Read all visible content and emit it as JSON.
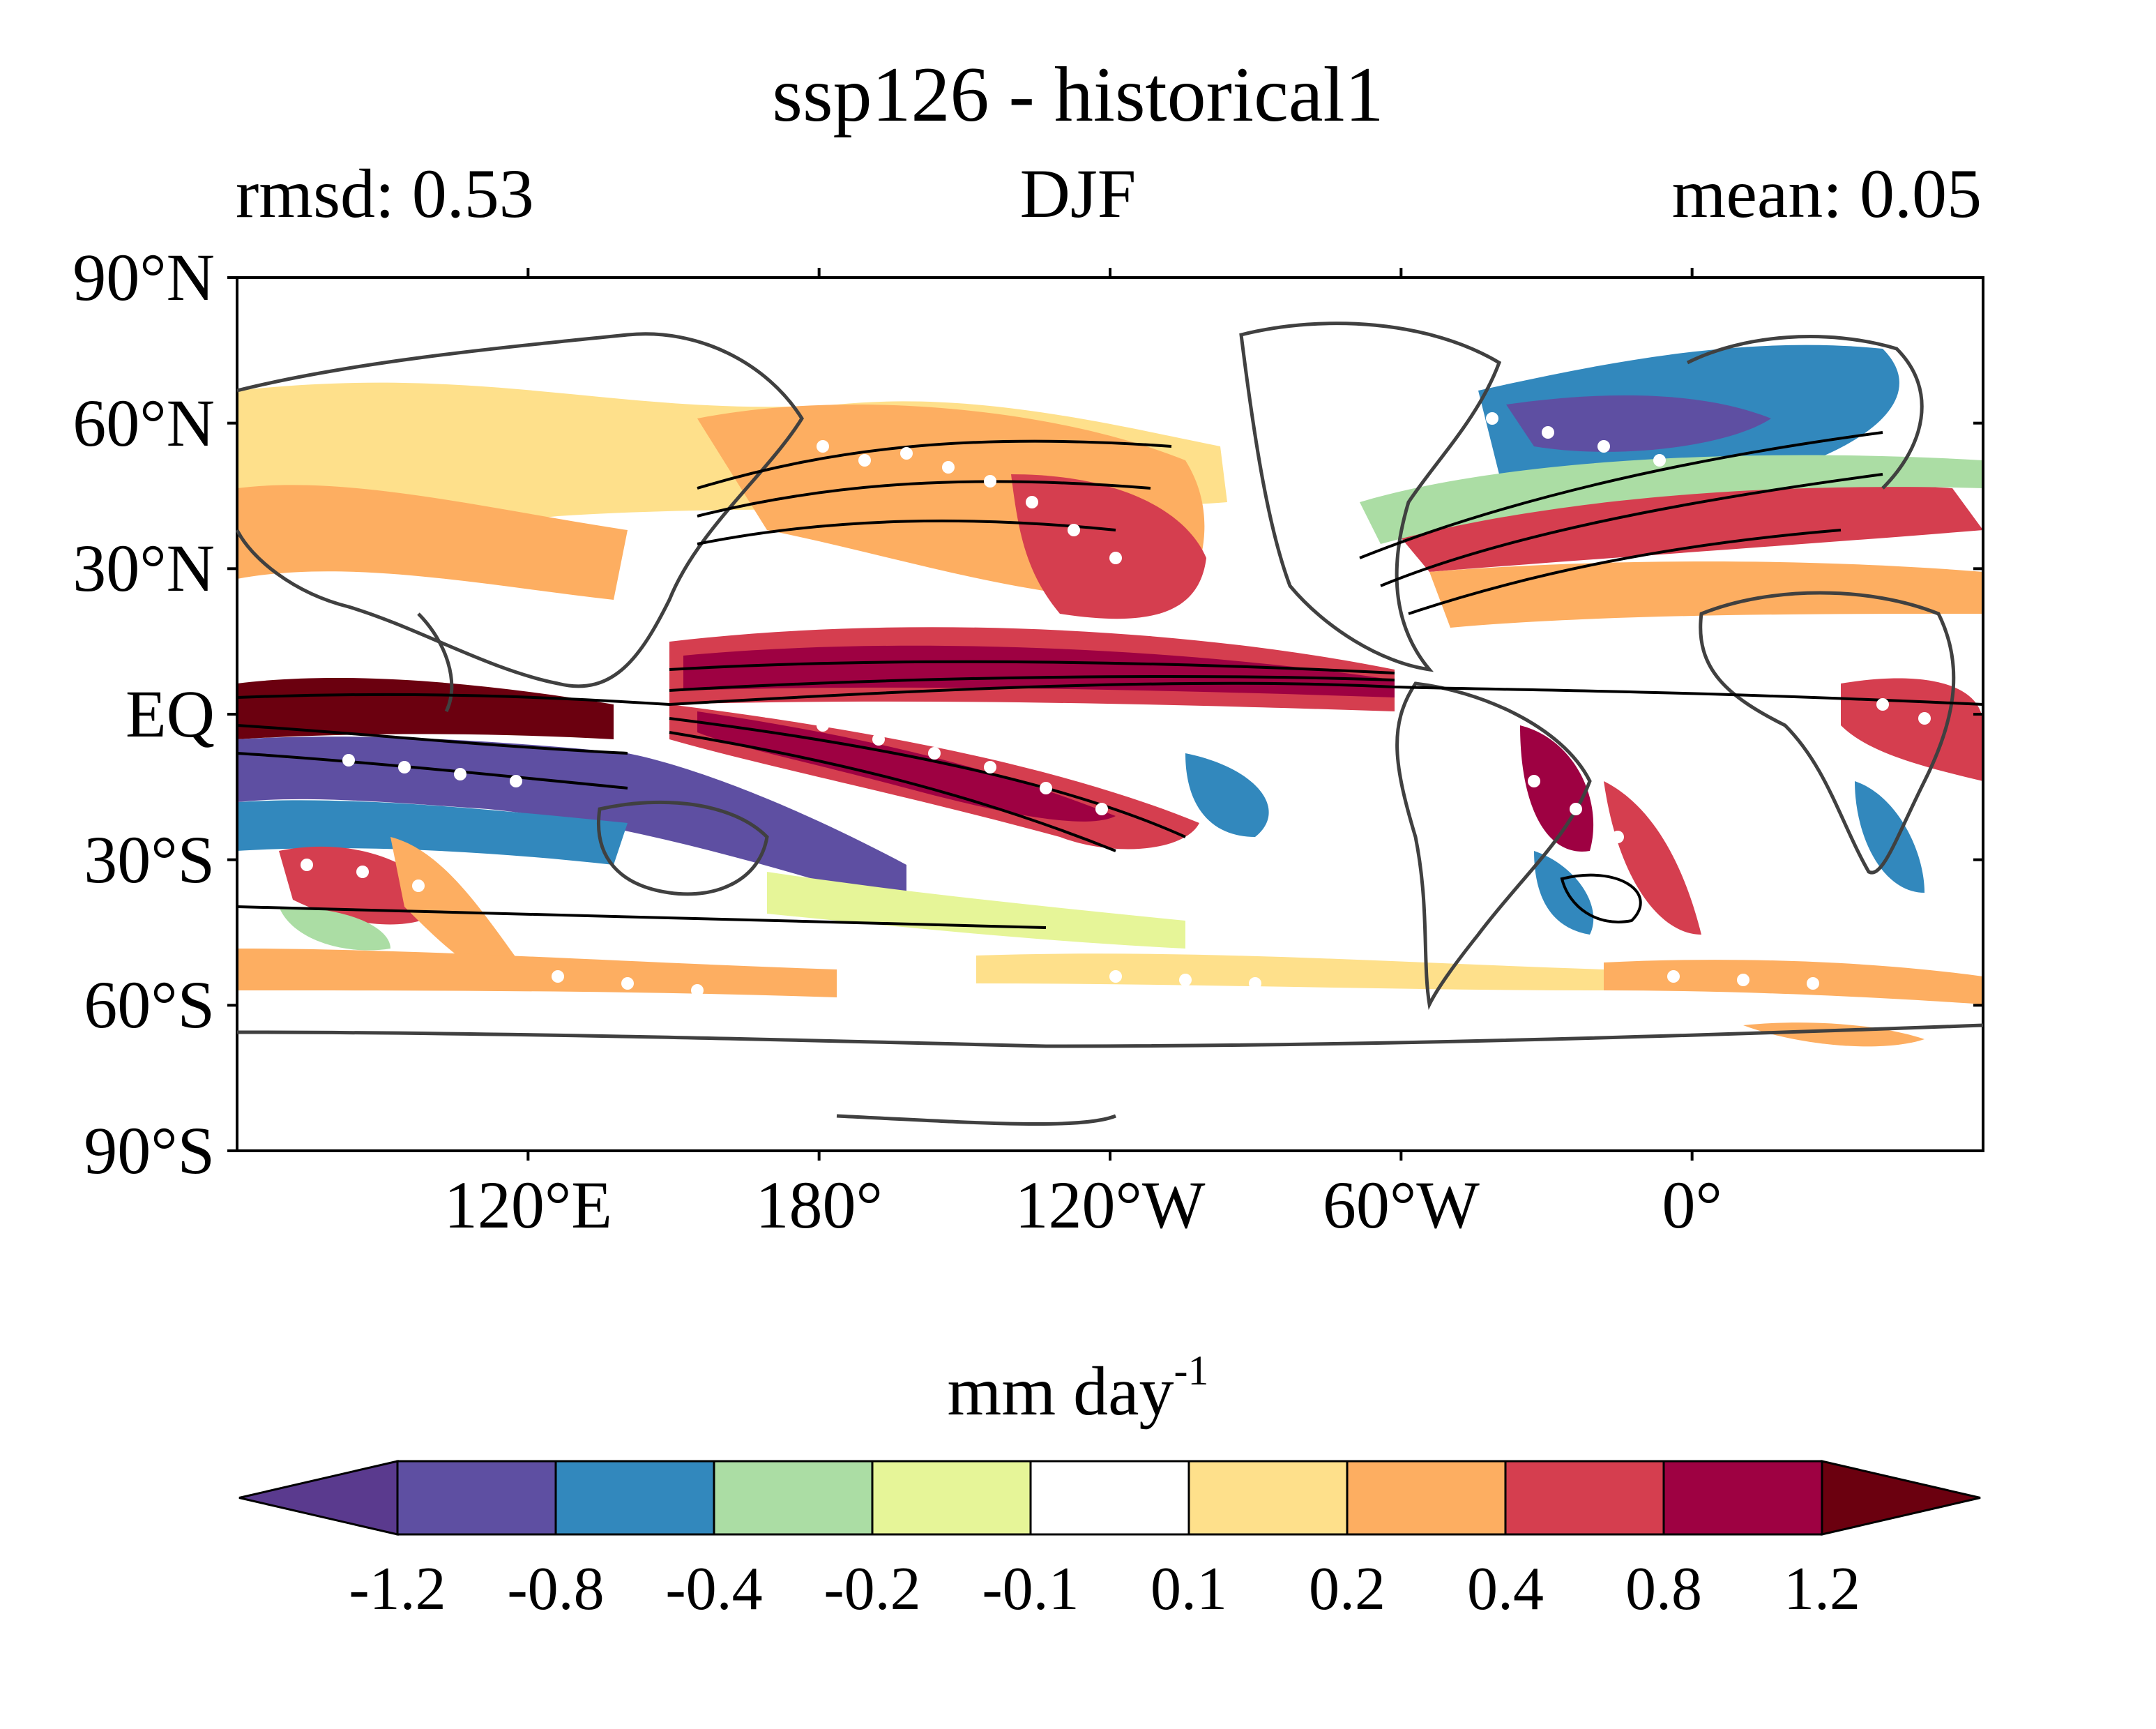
{
  "map": {
    "title": "ssp126 - historical1",
    "left_subtitle": "rmsd: 0.53",
    "center_subtitle": "DJF",
    "right_subtitle": "mean: 0.05",
    "projection": "equirectangular",
    "lon_range": [
      60,
      420
    ],
    "lat_range": [
      -90,
      90
    ],
    "lat_ticks": [
      {
        "value": 90,
        "label": "90°N"
      },
      {
        "value": 60,
        "label": "60°N"
      },
      {
        "value": 30,
        "label": "30°N"
      },
      {
        "value": 0,
        "label": "EQ"
      },
      {
        "value": -30,
        "label": "30°S"
      },
      {
        "value": -60,
        "label": "60°S"
      },
      {
        "value": -90,
        "label": "90°S"
      }
    ],
    "lon_ticks": [
      {
        "value": 120,
        "label": "120°E"
      },
      {
        "value": 180,
        "label": "180°"
      },
      {
        "value": 240,
        "label": "120°W"
      },
      {
        "value": 300,
        "label": "60°W"
      },
      {
        "value": 360,
        "label": "0°"
      }
    ],
    "colorbar": {
      "units": "mm day",
      "units_exponent": "-1",
      "levels": [
        -1.2,
        -0.8,
        -0.4,
        -0.2,
        -0.1,
        0.1,
        0.2,
        0.4,
        0.8,
        1.2
      ],
      "level_labels": [
        "-1.2",
        "-0.8",
        "-0.4",
        "-0.2",
        "-0.1",
        "0.1",
        "0.2",
        "0.4",
        "0.8",
        "1.2"
      ],
      "colors": [
        "#5a3a8e",
        "#5e4fa2",
        "#3288bd",
        "#abdda4",
        "#e6f598",
        "#ffffff",
        "#fee08b",
        "#fdae61",
        "#d53e4f",
        "#9e0142",
        "#6b000f"
      ]
    }
  }
}
